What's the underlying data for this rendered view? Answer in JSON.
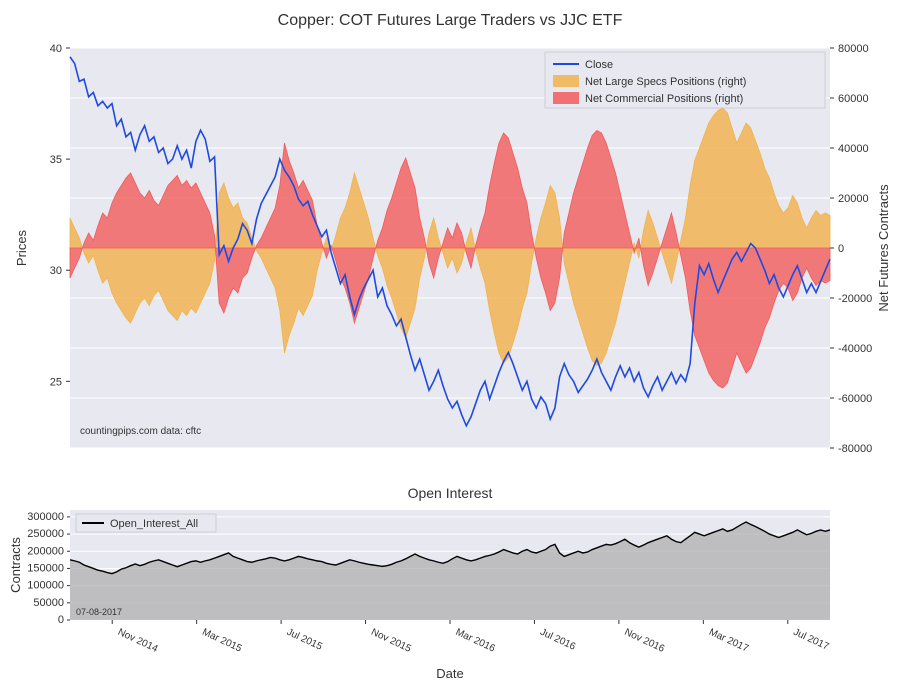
{
  "main_chart": {
    "title": "Copper: COT Futures Large Traders vs JJC ETF",
    "title_fontsize": 16,
    "background_color": "#ffffff",
    "plot_bg": "#e7e8f0",
    "grid_color": "#ffffff",
    "left_axis": {
      "label": "Prices",
      "ylim": [
        22,
        40
      ],
      "yticks": [
        25,
        30,
        35,
        40
      ]
    },
    "right_axis": {
      "label": "Net Futures Contracts",
      "ylim": [
        -80000,
        80000
      ],
      "yticks": [
        -80000,
        -60000,
        -40000,
        -20000,
        0,
        20000,
        40000,
        60000,
        80000
      ]
    },
    "x_ticks": [
      "Nov 2014",
      "Mar 2015",
      "Jul 2015",
      "Nov 2015",
      "Mar 2016",
      "Jul 2016",
      "Nov 2016",
      "Mar 2017",
      "Jul 2017"
    ],
    "attribution": "countingpips.com    data: cftc",
    "legend": {
      "items": [
        {
          "label": "Close",
          "type": "line",
          "color": "#1f4ae0"
        },
        {
          "label": "Net Large Specs Positions (right)",
          "type": "area",
          "color": "#f2b24d"
        },
        {
          "label": "Net Commercial Positions (right)",
          "type": "area",
          "color": "#f25b5b"
        }
      ]
    },
    "series_close": {
      "color": "#1f4ae0",
      "line_width": 1.6,
      "data": [
        39.6,
        39.3,
        38.5,
        38.6,
        37.8,
        38.0,
        37.4,
        37.6,
        37.3,
        37.5,
        36.5,
        36.8,
        36.0,
        36.2,
        35.4,
        36.1,
        36.5,
        35.8,
        36.0,
        35.3,
        35.5,
        34.8,
        35.0,
        35.6,
        35.0,
        35.4,
        34.6,
        35.8,
        36.3,
        35.9,
        34.9,
        35.1,
        30.7,
        31.1,
        30.4,
        31.0,
        31.4,
        32.1,
        31.8,
        31.2,
        32.3,
        33.0,
        33.4,
        33.8,
        34.2,
        35.0,
        34.5,
        34.2,
        33.8,
        33.2,
        32.9,
        33.1,
        32.5,
        32.0,
        31.5,
        31.8,
        30.8,
        30.1,
        29.4,
        29.8,
        28.8,
        28.0,
        28.7,
        29.2,
        29.6,
        30.0,
        28.8,
        29.2,
        28.4,
        28.0,
        27.5,
        27.8,
        27.0,
        26.2,
        25.5,
        26.0,
        25.3,
        24.6,
        25.0,
        25.5,
        24.8,
        24.2,
        23.8,
        24.1,
        23.5,
        23.0,
        23.4,
        24.0,
        24.6,
        25.0,
        24.2,
        24.8,
        25.4,
        25.9,
        26.3,
        25.8,
        25.2,
        24.6,
        25.0,
        24.2,
        23.8,
        24.3,
        24.0,
        23.3,
        23.8,
        25.2,
        25.8,
        25.3,
        25.0,
        24.5,
        24.8,
        25.1,
        25.5,
        26.0,
        25.4,
        25.0,
        24.6,
        25.2,
        25.7,
        25.2,
        25.6,
        25.0,
        25.4,
        24.7,
        24.3,
        24.8,
        25.2,
        24.6,
        25.0,
        25.4,
        24.9,
        25.3,
        25.0,
        25.8,
        28.5,
        30.2,
        29.8,
        30.3,
        29.6,
        29.0,
        29.5,
        30.0,
        30.5,
        30.8,
        30.4,
        30.8,
        31.2,
        31.0,
        30.5,
        30.0,
        29.4,
        29.8,
        29.2,
        28.8,
        29.3,
        29.8,
        30.2,
        29.6,
        29.0,
        29.4,
        29.0,
        29.5,
        30.0,
        30.5
      ]
    },
    "series_specs": {
      "color": "#f2b24d",
      "opacity": 0.82,
      "data": [
        12000,
        8000,
        4000,
        -2000,
        -6000,
        -3000,
        -9000,
        -14000,
        -12000,
        -18000,
        -22000,
        -25000,
        -28000,
        -30000,
        -26000,
        -22000,
        -20000,
        -23000,
        -19000,
        -17000,
        -21000,
        -25000,
        -27000,
        -29000,
        -25000,
        -27000,
        -24000,
        -26000,
        -22000,
        -18000,
        -14000,
        -5000,
        22000,
        26000,
        20000,
        16000,
        18000,
        12000,
        10000,
        4000,
        -1000,
        -4000,
        -8000,
        -12000,
        -16000,
        -25000,
        -42000,
        -35000,
        -30000,
        -24000,
        -27000,
        -23000,
        -19000,
        -9000,
        -2000,
        4000,
        -1000,
        5000,
        12000,
        16000,
        22000,
        30000,
        24000,
        18000,
        12000,
        4000,
        -3000,
        -8000,
        -15000,
        -20000,
        -26000,
        -32000,
        -36000,
        -30000,
        -24000,
        -12000,
        -4000,
        6000,
        12000,
        4000,
        -2000,
        -8000,
        -4000,
        -10000,
        -6000,
        2000,
        8000,
        -1000,
        -8000,
        -14000,
        -25000,
        -34000,
        -42000,
        -46000,
        -44000,
        -38000,
        -32000,
        -24000,
        -18000,
        -6000,
        4000,
        12000,
        18000,
        25000,
        22000,
        12000,
        -6000,
        -14000,
        -22000,
        -28000,
        -34000,
        -40000,
        -45000,
        -47000,
        -46000,
        -42000,
        -36000,
        -30000,
        -22000,
        -14000,
        -6000,
        2000,
        -4000,
        7000,
        15000,
        10000,
        4000,
        -2000,
        -8000,
        -14000,
        -6000,
        3000,
        12000,
        25000,
        35000,
        40000,
        45000,
        50000,
        53000,
        55000,
        56000,
        54000,
        48000,
        42000,
        46000,
        50000,
        48000,
        43000,
        38000,
        32000,
        28000,
        22000,
        17000,
        14000,
        16000,
        21000,
        18000,
        12000,
        8000,
        12000,
        15000,
        13000,
        14000,
        13000
      ]
    },
    "series_comm": {
      "color": "#f25b5b",
      "opacity": 0.8,
      "data": [
        -12000,
        -8000,
        -4000,
        2000,
        6000,
        3000,
        9000,
        14000,
        12000,
        18000,
        22000,
        25000,
        28000,
        30000,
        26000,
        22000,
        20000,
        23000,
        19000,
        17000,
        21000,
        25000,
        27000,
        29000,
        25000,
        27000,
        24000,
        26000,
        22000,
        18000,
        14000,
        5000,
        -22000,
        -26000,
        -20000,
        -16000,
        -18000,
        -12000,
        -10000,
        -4000,
        1000,
        4000,
        8000,
        12000,
        16000,
        25000,
        42000,
        35000,
        30000,
        24000,
        27000,
        23000,
        19000,
        9000,
        2000,
        -4000,
        1000,
        -5000,
        -12000,
        -16000,
        -22000,
        -30000,
        -24000,
        -18000,
        -12000,
        -4000,
        3000,
        8000,
        15000,
        20000,
        26000,
        32000,
        36000,
        30000,
        24000,
        12000,
        4000,
        -6000,
        -12000,
        -4000,
        2000,
        8000,
        4000,
        10000,
        6000,
        -2000,
        -8000,
        1000,
        8000,
        14000,
        25000,
        34000,
        42000,
        46000,
        44000,
        38000,
        32000,
        24000,
        18000,
        6000,
        -4000,
        -12000,
        -18000,
        -25000,
        -22000,
        -12000,
        6000,
        14000,
        22000,
        28000,
        34000,
        40000,
        45000,
        47000,
        46000,
        42000,
        36000,
        30000,
        22000,
        14000,
        6000,
        -2000,
        4000,
        -7000,
        -15000,
        -10000,
        -4000,
        2000,
        8000,
        14000,
        6000,
        -3000,
        -12000,
        -25000,
        -35000,
        -40000,
        -45000,
        -50000,
        -53000,
        -55000,
        -56000,
        -54000,
        -48000,
        -42000,
        -46000,
        -50000,
        -48000,
        -43000,
        -38000,
        -32000,
        -28000,
        -22000,
        -17000,
        -14000,
        -16000,
        -21000,
        -18000,
        -12000,
        -8000,
        -12000,
        -15000,
        -13000,
        -14000,
        -13000
      ]
    }
  },
  "oi_chart": {
    "title": "Open Interest",
    "title_fontsize": 14,
    "xlabel": "Date",
    "ylabel": "Contracts",
    "plot_bg": "#e7e8f0",
    "grid_color": "#ffffff",
    "ylim": [
      0,
      320000
    ],
    "yticks": [
      0,
      50000,
      100000,
      150000,
      200000,
      250000,
      300000
    ],
    "x_ticks": [
      "Nov 2014",
      "Mar 2015",
      "Jul 2015",
      "Nov 2015",
      "Mar 2016",
      "Jul 2016",
      "Nov 2016",
      "Mar 2017",
      "Jul 2017"
    ],
    "legend_label": "Open_Interest_All",
    "note_text": "07-08-2017",
    "series": {
      "line_color": "#000000",
      "fill_color": "#b0b0b0",
      "fill_opacity": 0.75,
      "line_width": 1.4,
      "data": [
        175000,
        172000,
        168000,
        160000,
        155000,
        150000,
        145000,
        142000,
        138000,
        135000,
        140000,
        148000,
        152000,
        158000,
        163000,
        158000,
        162000,
        168000,
        172000,
        175000,
        170000,
        165000,
        160000,
        155000,
        160000,
        165000,
        170000,
        172000,
        168000,
        172000,
        175000,
        180000,
        185000,
        190000,
        195000,
        185000,
        180000,
        175000,
        170000,
        168000,
        172000,
        175000,
        178000,
        182000,
        180000,
        175000,
        172000,
        175000,
        180000,
        185000,
        182000,
        178000,
        175000,
        172000,
        170000,
        165000,
        162000,
        160000,
        165000,
        170000,
        175000,
        172000,
        168000,
        165000,
        162000,
        160000,
        158000,
        156000,
        158000,
        162000,
        168000,
        172000,
        178000,
        185000,
        192000,
        185000,
        180000,
        175000,
        172000,
        168000,
        165000,
        170000,
        178000,
        185000,
        180000,
        175000,
        172000,
        175000,
        180000,
        185000,
        188000,
        192000,
        198000,
        205000,
        200000,
        195000,
        192000,
        200000,
        205000,
        198000,
        195000,
        200000,
        205000,
        215000,
        220000,
        195000,
        185000,
        190000,
        195000,
        200000,
        195000,
        198000,
        205000,
        210000,
        215000,
        220000,
        218000,
        222000,
        228000,
        235000,
        225000,
        218000,
        212000,
        218000,
        225000,
        230000,
        235000,
        240000,
        245000,
        235000,
        228000,
        225000,
        235000,
        245000,
        255000,
        250000,
        245000,
        250000,
        255000,
        260000,
        265000,
        258000,
        262000,
        270000,
        278000,
        285000,
        278000,
        272000,
        265000,
        258000,
        250000,
        245000,
        240000,
        245000,
        250000,
        255000,
        262000,
        255000,
        248000,
        252000,
        258000,
        262000,
        258000,
        262000
      ]
    }
  }
}
